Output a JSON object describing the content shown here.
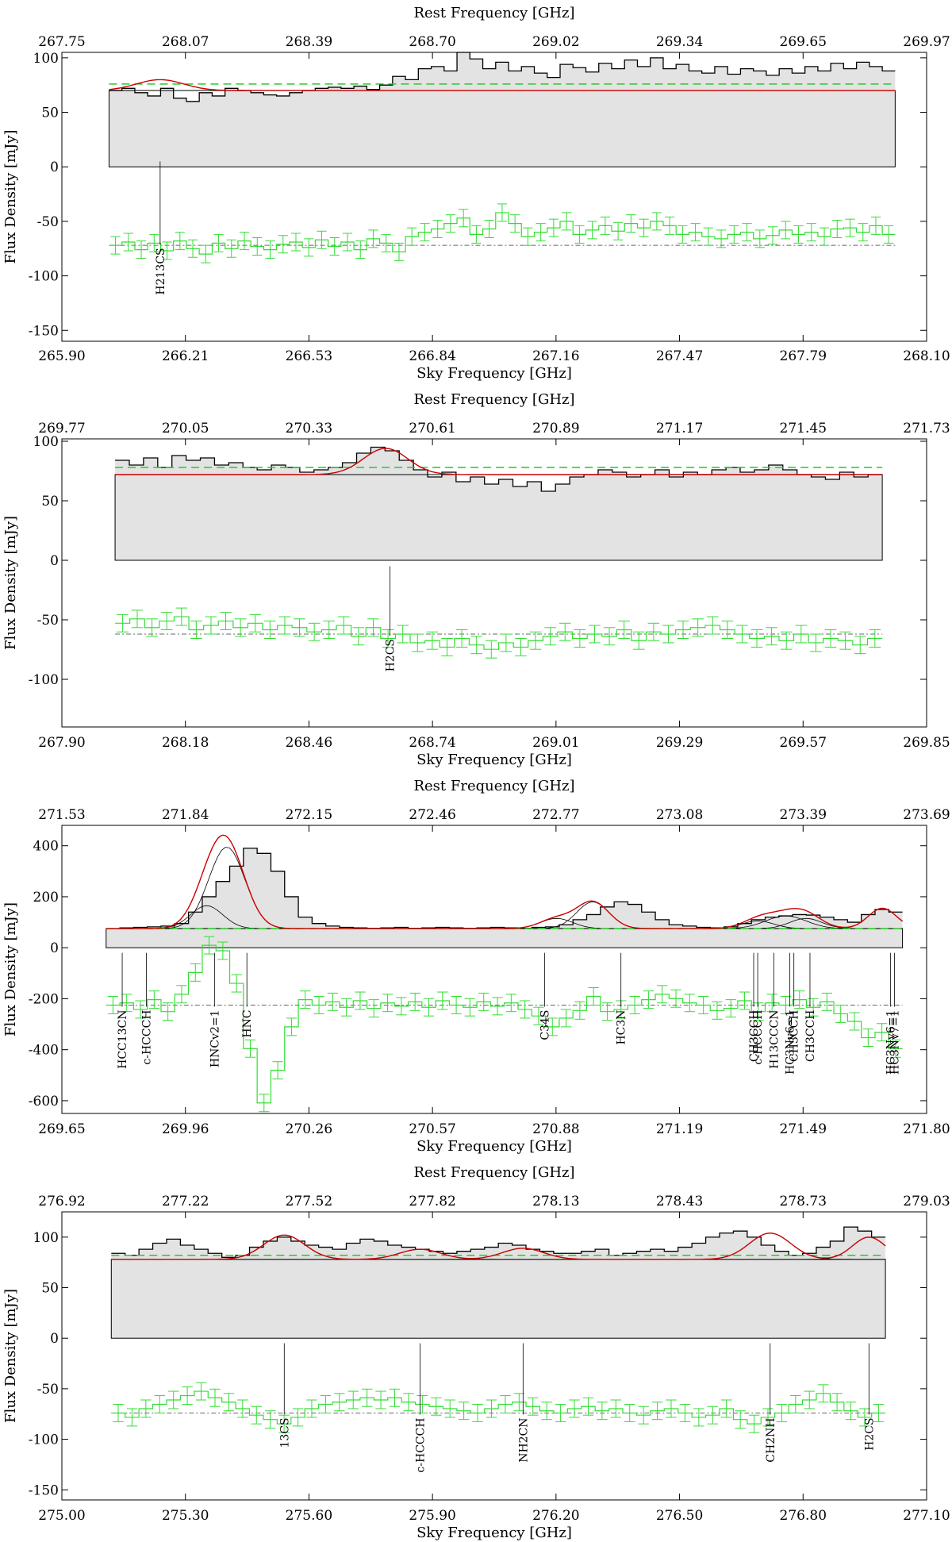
{
  "chart_data": [
    {
      "type": "line",
      "top_axis_title": "Rest Frequency [GHz]",
      "xlabel": "Sky Frequency [GHz]",
      "ylabel": "Flux Density [mJy]",
      "top_ticks": [
        "267.75",
        "268.07",
        "268.39",
        "268.70",
        "269.02",
        "269.34",
        "269.65",
        "269.97"
      ],
      "bottom_ticks": [
        "265.90",
        "266.21",
        "266.53",
        "266.84",
        "267.16",
        "267.47",
        "267.79",
        "268.10"
      ],
      "y_ticks": [
        100,
        50,
        0,
        -50,
        -100,
        -150
      ],
      "xlim": [
        265.9,
        268.1
      ],
      "ylim": [
        -160,
        105
      ],
      "data_range": [
        266.02,
        268.02
      ],
      "continuum": 70,
      "continuum_dashed": 76,
      "residual_offset": -72,
      "fit_peaks": [
        {
          "center": 266.15,
          "amp": 10,
          "width": 0.06
        }
      ],
      "spectrum": [
        70,
        72,
        68,
        65,
        72,
        63,
        60,
        68,
        65,
        72,
        70,
        68,
        66,
        65,
        68,
        70,
        72,
        73,
        72,
        74,
        71,
        75,
        83,
        80,
        90,
        92,
        88,
        105,
        99,
        90,
        96,
        88,
        92,
        86,
        82,
        94,
        91,
        87,
        95,
        90,
        98,
        92,
        100,
        90,
        94,
        88,
        86,
        92,
        85,
        90,
        88,
        84,
        90,
        86,
        92,
        88,
        95,
        90,
        96,
        92,
        88
      ],
      "residual_noise": [
        0,
        3,
        -4,
        2,
        -5,
        4,
        -3,
        -8,
        2,
        -3,
        4,
        -1,
        -4,
        1,
        3,
        -2,
        5,
        -1,
        3,
        -4,
        6,
        2,
        -6,
        8,
        12,
        15,
        20,
        25,
        10,
        15,
        30,
        20,
        8,
        12,
        16,
        22,
        10,
        14,
        18,
        13,
        20,
        16,
        22,
        18,
        10,
        12,
        8,
        6,
        10,
        12,
        6,
        9,
        14,
        10,
        12,
        8,
        15,
        16,
        12,
        18,
        10
      ],
      "lines": [
        {
          "label": "H213CS",
          "freq": 266.15,
          "top": 5,
          "bottom": -70
        }
      ]
    },
    {
      "type": "line",
      "top_axis_title": "Rest Frequency [GHz]",
      "xlabel": "Sky Frequency [GHz]",
      "ylabel": "Flux Density [mJy]",
      "top_ticks": [
        "269.77",
        "270.05",
        "270.33",
        "270.61",
        "270.89",
        "271.17",
        "271.45",
        "271.73"
      ],
      "bottom_ticks": [
        "267.90",
        "268.18",
        "268.46",
        "268.74",
        "269.01",
        "269.29",
        "269.57",
        "269.85"
      ],
      "y_ticks": [
        100,
        50,
        0,
        -50,
        -100
      ],
      "xlim": [
        267.9,
        269.85
      ],
      "ylim": [
        -140,
        102
      ],
      "data_range": [
        268.02,
        269.75
      ],
      "continuum": 72,
      "continuum_dashed": 78,
      "residual_offset": -62,
      "fit_peaks": [
        {
          "center": 268.63,
          "amp": 22,
          "width": 0.05
        }
      ],
      "spectrum": [
        84,
        80,
        86,
        78,
        88,
        84,
        86,
        80,
        82,
        78,
        76,
        80,
        78,
        74,
        76,
        78,
        82,
        90,
        95,
        92,
        84,
        76,
        70,
        74,
        66,
        70,
        64,
        68,
        62,
        66,
        58,
        64,
        70,
        72,
        76,
        74,
        70,
        72,
        76,
        70,
        74,
        72,
        76,
        78,
        74,
        76,
        80,
        76,
        72,
        70,
        68,
        74,
        70,
        72
      ],
      "residual_noise": [
        10,
        14,
        6,
        12,
        16,
        4,
        8,
        12,
        6,
        10,
        4,
        8,
        6,
        2,
        4,
        8,
        -2,
        6,
        -4,
        0,
        -8,
        -6,
        -12,
        -4,
        -10,
        -14,
        -8,
        -12,
        -6,
        -2,
        2,
        -4,
        0,
        -2,
        4,
        -6,
        2,
        0,
        4,
        6,
        8,
        4,
        0,
        -4,
        -2,
        -6,
        0,
        -8,
        -4,
        -6,
        -10,
        -4
      ],
      "lines": [
        {
          "label": "H2CS",
          "freq": 268.64,
          "top": -5,
          "bottom": -62
        }
      ]
    },
    {
      "type": "line",
      "top_axis_title": "Rest Frequency [GHz]",
      "xlabel": "Sky Frequency [GHz]",
      "ylabel": "Flux Density [mJy]",
      "top_ticks": [
        "271.53",
        "271.84",
        "272.15",
        "272.46",
        "272.77",
        "273.08",
        "273.39",
        "273.69"
      ],
      "bottom_ticks": [
        "269.65",
        "269.96",
        "270.26",
        "270.57",
        "270.88",
        "271.19",
        "271.49",
        "271.80"
      ],
      "y_ticks": [
        400,
        200,
        0,
        -200,
        -400,
        -600
      ],
      "xlim": [
        269.65,
        271.8
      ],
      "ylim": [
        -650,
        480
      ],
      "data_range": [
        269.76,
        271.74
      ],
      "continuum": 75,
      "continuum_dashed": 75,
      "residual_offset": -225,
      "fit_peaks": [
        {
          "center": 270.01,
          "amp": 90,
          "width": 0.04
        },
        {
          "center": 270.06,
          "amp": 320,
          "width": 0.045
        },
        {
          "center": 270.97,
          "amp": 105,
          "width": 0.04
        },
        {
          "center": 270.88,
          "amp": 40,
          "width": 0.04
        },
        {
          "center": 271.38,
          "amp": 30,
          "width": 0.04
        },
        {
          "center": 271.45,
          "amp": 50,
          "width": 0.05
        },
        {
          "center": 271.5,
          "amp": 40,
          "width": 0.04
        },
        {
          "center": 271.69,
          "amp": 80,
          "width": 0.035
        }
      ],
      "spectrum": [
        75,
        78,
        80,
        82,
        85,
        95,
        140,
        200,
        260,
        320,
        390,
        370,
        300,
        200,
        120,
        95,
        85,
        80,
        78,
        76,
        78,
        80,
        76,
        78,
        80,
        78,
        76,
        78,
        80,
        78,
        76,
        80,
        82,
        90,
        110,
        130,
        160,
        180,
        170,
        140,
        110,
        90,
        85,
        80,
        78,
        82,
        95,
        110,
        120,
        125,
        130,
        128,
        120,
        110,
        100,
        130,
        150,
        140
      ],
      "residual_noise": [
        0,
        2,
        -4,
        5,
        -6,
        10,
        30,
        55,
        50,
        20,
        -40,
        -90,
        -60,
        -20,
        5,
        0,
        3,
        -2,
        4,
        -3,
        2,
        -1,
        3,
        -2,
        4,
        0,
        -2,
        3,
        -1,
        2,
        -4,
        -10,
        -20,
        -12,
        -5,
        8,
        -6,
        -4,
        0,
        5,
        10,
        6,
        2,
        0,
        -5,
        -3,
        4,
        -6,
        2,
        0,
        5,
        -2,
        3,
        -8,
        -15,
        -30,
        -25,
        -40
      ],
      "lines": [
        {
          "label": "HCC13CN",
          "freq": 269.8,
          "top": -20,
          "bottom": -225
        },
        {
          "label": "c-HCCCH",
          "freq": 269.86,
          "top": -20,
          "bottom": -225
        },
        {
          "label": "HNCv2=1",
          "freq": 270.03,
          "top": -20,
          "bottom": -225
        },
        {
          "label": "HNC",
          "freq": 270.11,
          "top": -20,
          "bottom": -225
        },
        {
          "label": "C34S",
          "freq": 270.85,
          "top": -20,
          "bottom": -225
        },
        {
          "label": "HC3N",
          "freq": 271.04,
          "top": -20,
          "bottom": -225
        },
        {
          "label": "CH3CCH",
          "freq": 271.37,
          "top": -20,
          "bottom": -225
        },
        {
          "label": "c-HCCCH",
          "freq": 271.38,
          "top": -20,
          "bottom": -225
        },
        {
          "label": "H13CCCN",
          "freq": 271.42,
          "top": -20,
          "bottom": -225
        },
        {
          "label": "HC3Nv6=1",
          "freq": 271.46,
          "top": -20,
          "bottom": -225
        },
        {
          "label": "CH3CCH",
          "freq": 271.47,
          "top": -20,
          "bottom": -225
        },
        {
          "label": "CH3CCH",
          "freq": 271.51,
          "top": -20,
          "bottom": -225
        },
        {
          "label": "HC3Nv6=1",
          "freq": 271.71,
          "top": -20,
          "bottom": -225
        },
        {
          "label": "HC3Nv7=1",
          "freq": 271.72,
          "top": -20,
          "bottom": -225
        }
      ]
    },
    {
      "type": "line",
      "top_axis_title": "Rest Frequency [GHz]",
      "xlabel": "Sky Frequency [GHz]",
      "ylabel": "Flux Density [mJy]",
      "top_ticks": [
        "276.92",
        "277.22",
        "277.52",
        "277.82",
        "278.13",
        "278.43",
        "278.73",
        "279.03"
      ],
      "bottom_ticks": [
        "275.00",
        "275.30",
        "275.60",
        "275.90",
        "276.20",
        "276.50",
        "276.80",
        "277.10"
      ],
      "y_ticks": [
        100,
        50,
        0,
        -50,
        -100,
        -150
      ],
      "xlim": [
        275.0,
        277.1
      ],
      "ylim": [
        -160,
        125
      ],
      "data_range": [
        275.12,
        277.0
      ],
      "continuum": 78,
      "continuum_dashed": 82,
      "residual_offset": -74,
      "fit_peaks": [
        {
          "center": 275.54,
          "amp": 24,
          "width": 0.05
        },
        {
          "center": 275.87,
          "amp": 10,
          "width": 0.05
        },
        {
          "center": 276.12,
          "amp": 11,
          "width": 0.05
        },
        {
          "center": 276.72,
          "amp": 26,
          "width": 0.05
        },
        {
          "center": 276.96,
          "amp": 22,
          "width": 0.04
        }
      ],
      "spectrum": [
        84,
        82,
        88,
        94,
        98,
        92,
        88,
        84,
        80,
        82,
        90,
        96,
        100,
        96,
        92,
        90,
        88,
        94,
        98,
        96,
        92,
        90,
        88,
        86,
        84,
        86,
        88,
        90,
        94,
        92,
        88,
        86,
        84,
        84,
        86,
        88,
        82,
        84,
        86,
        88,
        86,
        90,
        94,
        100,
        104,
        106,
        100,
        92,
        86,
        82,
        84,
        90,
        96,
        110,
        106,
        100
      ],
      "residual_noise": [
        0,
        -4,
        4,
        8,
        12,
        16,
        20,
        14,
        10,
        4,
        -2,
        -6,
        -10,
        -4,
        4,
        8,
        10,
        12,
        14,
        12,
        14,
        10,
        8,
        6,
        4,
        2,
        0,
        4,
        8,
        10,
        6,
        2,
        0,
        4,
        6,
        2,
        4,
        0,
        -2,
        2,
        4,
        0,
        -4,
        -2,
        4,
        -6,
        -10,
        -4,
        0,
        8,
        12,
        18,
        10,
        2,
        -4,
        0
      ],
      "lines": [
        {
          "label": "13CS",
          "freq": 275.54,
          "top": -5,
          "bottom": -74
        },
        {
          "label": "c-HCCCH",
          "freq": 275.87,
          "top": -5,
          "bottom": -74
        },
        {
          "label": "NH2CN",
          "freq": 276.12,
          "top": -5,
          "bottom": -74
        },
        {
          "label": "CH2NH",
          "freq": 276.72,
          "top": -5,
          "bottom": -74
        },
        {
          "label": "H2CS",
          "freq": 276.96,
          "top": -5,
          "bottom": -74
        }
      ]
    }
  ]
}
